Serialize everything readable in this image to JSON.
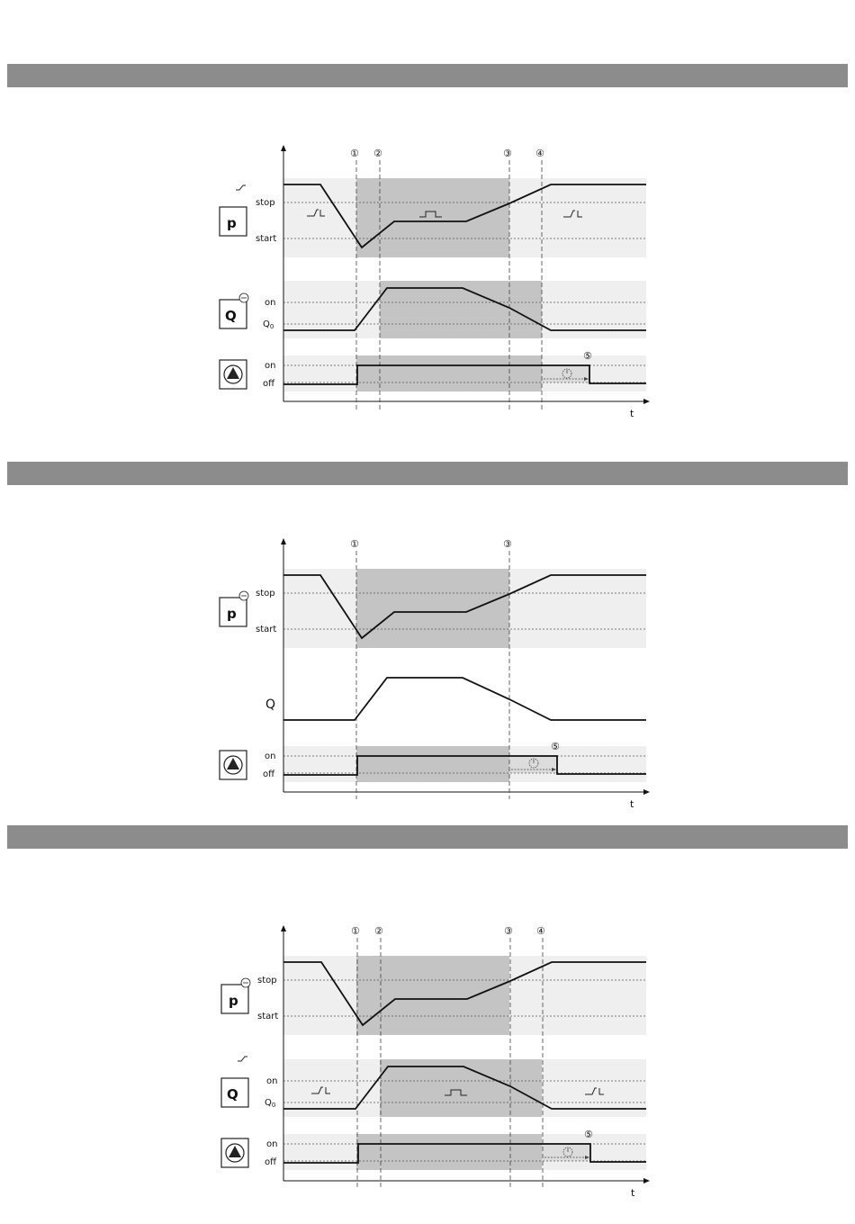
{
  "axis_label": "t",
  "diagrams": [
    {
      "markers": [
        "①",
        "②",
        "③",
        "④",
        "⑤"
      ],
      "p_icon": "p",
      "p_icon_badge": "switch-icon",
      "p_levels": [
        "stop",
        "start"
      ],
      "q_icon": "Q",
      "q_icon_badge": "sensor-icon",
      "q_levels": [
        "on",
        "Q0"
      ],
      "pump_levels": [
        "on",
        "off"
      ],
      "timer_icon": "clock-icon"
    },
    {
      "markers": [
        "①",
        "③",
        "⑤"
      ],
      "p_icon": "p",
      "p_icon_badge": "sensor-icon",
      "p_levels": [
        "stop",
        "start"
      ],
      "q_label": "Q",
      "pump_levels": [
        "on",
        "off"
      ],
      "timer_icon": "clock-icon"
    },
    {
      "markers": [
        "①",
        "②",
        "③",
        "④",
        "⑤"
      ],
      "p_icon": "p",
      "p_icon_badge": "sensor-icon",
      "p_levels": [
        "stop",
        "start"
      ],
      "q_icon": "Q",
      "q_icon_badge": "switch-icon",
      "q_levels": [
        "on",
        "Q0"
      ],
      "pump_levels": [
        "on",
        "off"
      ],
      "timer_icon": "clock-icon"
    }
  ]
}
